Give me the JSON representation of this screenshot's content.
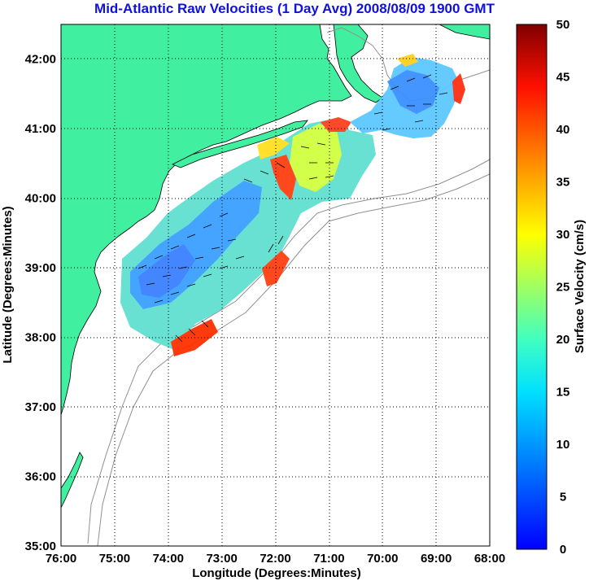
{
  "title": "Mid-Atlantic Raw Velocities (1 Day Avg) 2008/08/09 1900 GMT",
  "map": {
    "xlabel": "Longitude (Degrees:Minutes)",
    "ylabel": "Latitude (Degrees:Minutes)",
    "x_ticks": [
      "76:00",
      "75:00",
      "74:00",
      "73:00",
      "72:00",
      "71:00",
      "70:00",
      "69:00",
      "68:00"
    ],
    "y_ticks": [
      "35:00",
      "36:00",
      "37:00",
      "38:00",
      "39:00",
      "40:00",
      "41:00",
      "42:00"
    ],
    "lon_range": [
      -76,
      -68
    ],
    "lat_range": [
      35,
      42.5
    ],
    "land_color": "#40f0a0",
    "grid": "dotted"
  },
  "colorbar": {
    "label": "Surface Velocity (cm/s)",
    "ticks": [
      "0",
      "5",
      "10",
      "15",
      "20",
      "25",
      "30",
      "35",
      "40",
      "45",
      "50"
    ],
    "range": [
      0,
      50
    ],
    "colormap": "jet"
  }
}
